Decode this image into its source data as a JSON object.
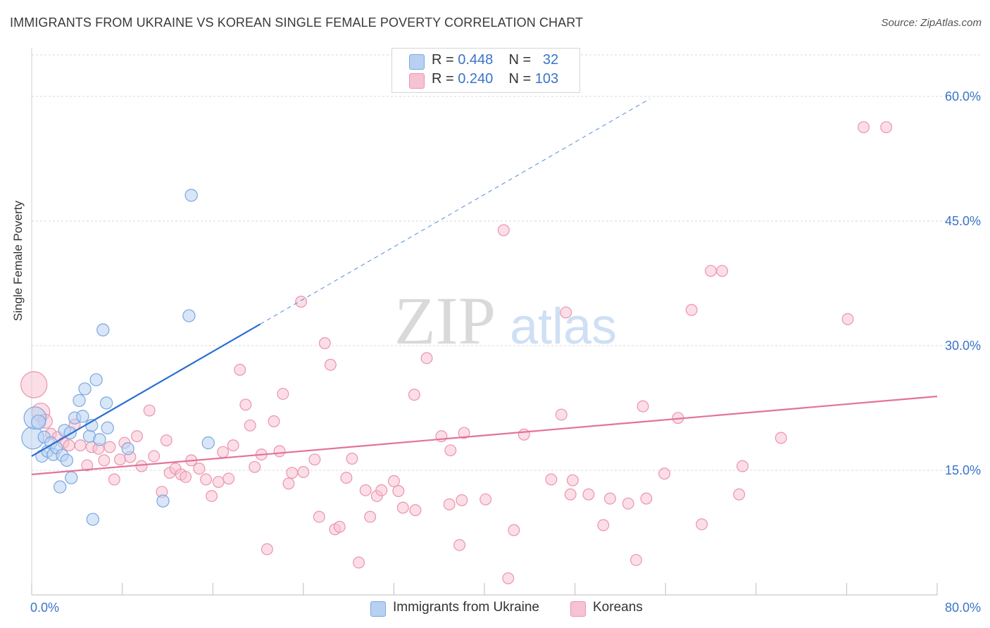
{
  "header": {
    "title": "IMMIGRANTS FROM UKRAINE VS KOREAN SINGLE FEMALE POVERTY CORRELATION CHART",
    "source": "Source: ZipAtlas.com"
  },
  "watermark": {
    "zip": "ZIP",
    "atlas": "atlas"
  },
  "legend": {
    "ukraine": {
      "r_label": "R =",
      "r_value": "0.448",
      "n_label": "N =",
      "n_value": "32"
    },
    "koreans": {
      "r_label": "R =",
      "r_value": "0.240",
      "n_label": "N =",
      "n_value": "103"
    }
  },
  "bottom_legend": {
    "ukraine": "Immigrants from Ukraine",
    "koreans": "Koreans"
  },
  "colors": {
    "ukraine_fill": "#b8d1f3",
    "ukraine_stroke": "#7ba7e0",
    "ukraine_line": "#2a6fd0",
    "koreans_fill": "#f7c3d2",
    "koreans_stroke": "#eb94b0",
    "koreans_line": "#e3729a",
    "tick_text": "#3a74c8",
    "grid": "#d8d8d8"
  },
  "chart_data": {
    "type": "scatter",
    "xlabel": "",
    "ylabel": "Single Female Poverty",
    "xlim": [
      0,
      80
    ],
    "ylim": [
      0,
      65
    ],
    "x_tick_labels": [
      "0.0%",
      "80.0%"
    ],
    "y_ticks": [
      15,
      30,
      45,
      60
    ],
    "y_tick_labels": [
      "15.0%",
      "30.0%",
      "45.0%",
      "60.0%"
    ],
    "grid": true,
    "series": [
      {
        "name": "Immigrants from Ukraine",
        "r": 0.448,
        "n": 32,
        "trend": {
          "x_start": 0,
          "y_start": 16.7,
          "x_solid_end": 20.2,
          "y_solid_end": 32.6,
          "x_dash_end": 54.6,
          "y_dash_end": 59.7
        },
        "points": [
          {
            "x": 0.1,
            "y": 18.9,
            "s": 22
          },
          {
            "x": 0.3,
            "y": 21.3,
            "s": 22
          },
          {
            "x": 0.6,
            "y": 20.8,
            "s": 14
          },
          {
            "x": 0.9,
            "y": 16.7,
            "s": 12
          },
          {
            "x": 1.1,
            "y": 19.0,
            "s": 12
          },
          {
            "x": 1.4,
            "y": 17.3,
            "s": 12
          },
          {
            "x": 1.7,
            "y": 18.3,
            "s": 12
          },
          {
            "x": 1.9,
            "y": 16.9,
            "s": 12
          },
          {
            "x": 2.2,
            "y": 17.7,
            "s": 12
          },
          {
            "x": 2.5,
            "y": 13.0,
            "s": 12
          },
          {
            "x": 2.7,
            "y": 16.8,
            "s": 12
          },
          {
            "x": 2.9,
            "y": 19.8,
            "s": 12
          },
          {
            "x": 3.1,
            "y": 16.2,
            "s": 12
          },
          {
            "x": 3.5,
            "y": 14.1,
            "s": 12
          },
          {
            "x": 3.4,
            "y": 19.5,
            "s": 12
          },
          {
            "x": 3.8,
            "y": 21.3,
            "s": 12
          },
          {
            "x": 4.2,
            "y": 23.4,
            "s": 12
          },
          {
            "x": 4.5,
            "y": 21.5,
            "s": 12
          },
          {
            "x": 4.7,
            "y": 24.8,
            "s": 12
          },
          {
            "x": 5.1,
            "y": 19.1,
            "s": 12
          },
          {
            "x": 5.3,
            "y": 20.4,
            "s": 12
          },
          {
            "x": 5.7,
            "y": 25.9,
            "s": 12
          },
          {
            "x": 6.0,
            "y": 18.7,
            "s": 12
          },
          {
            "x": 6.3,
            "y": 31.9,
            "s": 12
          },
          {
            "x": 6.6,
            "y": 23.1,
            "s": 12
          },
          {
            "x": 6.7,
            "y": 20.1,
            "s": 12
          },
          {
            "x": 5.4,
            "y": 9.1,
            "s": 12
          },
          {
            "x": 8.5,
            "y": 17.6,
            "s": 12
          },
          {
            "x": 11.6,
            "y": 11.3,
            "s": 12
          },
          {
            "x": 14.1,
            "y": 48.1,
            "s": 12
          },
          {
            "x": 13.9,
            "y": 33.6,
            "s": 12
          },
          {
            "x": 15.6,
            "y": 18.3,
            "s": 12
          }
        ]
      },
      {
        "name": "Koreans",
        "r": 0.24,
        "n": 103,
        "trend": {
          "x_start": 0,
          "y_start": 14.5,
          "x_end": 80,
          "y_end": 23.9
        },
        "points": [
          {
            "x": 0.2,
            "y": 25.3,
            "s": 26
          },
          {
            "x": 0.8,
            "y": 22.0,
            "s": 18
          },
          {
            "x": 1.2,
            "y": 20.9,
            "s": 14
          },
          {
            "x": 1.7,
            "y": 19.4,
            "s": 11
          },
          {
            "x": 2.3,
            "y": 19.0,
            "s": 11
          },
          {
            "x": 2.8,
            "y": 18.3,
            "s": 11
          },
          {
            "x": 3.3,
            "y": 18.0,
            "s": 11
          },
          {
            "x": 3.8,
            "y": 20.5,
            "s": 11
          },
          {
            "x": 4.3,
            "y": 18.0,
            "s": 11
          },
          {
            "x": 4.9,
            "y": 15.6,
            "s": 11
          },
          {
            "x": 5.3,
            "y": 17.8,
            "s": 11
          },
          {
            "x": 5.9,
            "y": 17.6,
            "s": 11
          },
          {
            "x": 6.4,
            "y": 16.2,
            "s": 11
          },
          {
            "x": 6.9,
            "y": 17.8,
            "s": 11
          },
          {
            "x": 7.3,
            "y": 13.9,
            "s": 11
          },
          {
            "x": 7.8,
            "y": 16.3,
            "s": 11
          },
          {
            "x": 8.2,
            "y": 18.3,
            "s": 11
          },
          {
            "x": 8.7,
            "y": 16.6,
            "s": 11
          },
          {
            "x": 9.3,
            "y": 19.1,
            "s": 11
          },
          {
            "x": 9.7,
            "y": 15.5,
            "s": 11
          },
          {
            "x": 10.4,
            "y": 22.2,
            "s": 11
          },
          {
            "x": 10.8,
            "y": 16.7,
            "s": 11
          },
          {
            "x": 11.5,
            "y": 12.4,
            "s": 11
          },
          {
            "x": 11.9,
            "y": 18.6,
            "s": 11
          },
          {
            "x": 12.2,
            "y": 14.7,
            "s": 11
          },
          {
            "x": 12.7,
            "y": 15.2,
            "s": 11
          },
          {
            "x": 13.2,
            "y": 14.5,
            "s": 11
          },
          {
            "x": 13.6,
            "y": 14.2,
            "s": 11
          },
          {
            "x": 14.1,
            "y": 16.2,
            "s": 11
          },
          {
            "x": 14.8,
            "y": 15.2,
            "s": 11
          },
          {
            "x": 15.4,
            "y": 13.9,
            "s": 11
          },
          {
            "x": 15.9,
            "y": 11.9,
            "s": 11
          },
          {
            "x": 16.5,
            "y": 13.6,
            "s": 11
          },
          {
            "x": 16.9,
            "y": 17.2,
            "s": 11
          },
          {
            "x": 17.4,
            "y": 14.0,
            "s": 11
          },
          {
            "x": 17.8,
            "y": 18.0,
            "s": 11
          },
          {
            "x": 18.4,
            "y": 27.1,
            "s": 11
          },
          {
            "x": 18.9,
            "y": 22.9,
            "s": 11
          },
          {
            "x": 19.3,
            "y": 20.4,
            "s": 11
          },
          {
            "x": 19.7,
            "y": 15.4,
            "s": 11
          },
          {
            "x": 20.3,
            "y": 16.9,
            "s": 11
          },
          {
            "x": 20.8,
            "y": 5.5,
            "s": 11
          },
          {
            "x": 21.4,
            "y": 20.9,
            "s": 11
          },
          {
            "x": 21.9,
            "y": 17.3,
            "s": 11
          },
          {
            "x": 22.2,
            "y": 24.2,
            "s": 11
          },
          {
            "x": 22.7,
            "y": 13.4,
            "s": 11
          },
          {
            "x": 23.0,
            "y": 14.7,
            "s": 11
          },
          {
            "x": 24.0,
            "y": 14.8,
            "s": 11
          },
          {
            "x": 23.8,
            "y": 35.3,
            "s": 11
          },
          {
            "x": 25.0,
            "y": 16.3,
            "s": 11
          },
          {
            "x": 25.4,
            "y": 9.4,
            "s": 11
          },
          {
            "x": 25.9,
            "y": 30.3,
            "s": 11
          },
          {
            "x": 26.4,
            "y": 27.7,
            "s": 11
          },
          {
            "x": 26.8,
            "y": 7.9,
            "s": 11
          },
          {
            "x": 27.2,
            "y": 8.2,
            "s": 11
          },
          {
            "x": 27.8,
            "y": 14.1,
            "s": 11
          },
          {
            "x": 28.3,
            "y": 16.4,
            "s": 11
          },
          {
            "x": 28.9,
            "y": 3.9,
            "s": 11
          },
          {
            "x": 29.5,
            "y": 12.6,
            "s": 11
          },
          {
            "x": 29.9,
            "y": 9.4,
            "s": 11
          },
          {
            "x": 30.5,
            "y": 11.9,
            "s": 11
          },
          {
            "x": 30.9,
            "y": 12.6,
            "s": 11
          },
          {
            "x": 32.0,
            "y": 13.7,
            "s": 11
          },
          {
            "x": 32.4,
            "y": 12.5,
            "s": 11
          },
          {
            "x": 32.8,
            "y": 10.5,
            "s": 11
          },
          {
            "x": 33.8,
            "y": 24.1,
            "s": 11
          },
          {
            "x": 33.9,
            "y": 10.2,
            "s": 11
          },
          {
            "x": 34.9,
            "y": 28.5,
            "s": 11
          },
          {
            "x": 36.2,
            "y": 19.1,
            "s": 11
          },
          {
            "x": 36.9,
            "y": 10.9,
            "s": 11
          },
          {
            "x": 37.0,
            "y": 17.4,
            "s": 11
          },
          {
            "x": 37.8,
            "y": 6.0,
            "s": 11
          },
          {
            "x": 38.0,
            "y": 11.4,
            "s": 11
          },
          {
            "x": 38.2,
            "y": 19.5,
            "s": 11
          },
          {
            "x": 40.1,
            "y": 11.5,
            "s": 11
          },
          {
            "x": 41.7,
            "y": 43.9,
            "s": 11
          },
          {
            "x": 42.1,
            "y": 2.0,
            "s": 11
          },
          {
            "x": 42.6,
            "y": 7.8,
            "s": 11
          },
          {
            "x": 43.5,
            "y": 19.3,
            "s": 11
          },
          {
            "x": 45.9,
            "y": 13.9,
            "s": 11
          },
          {
            "x": 46.8,
            "y": 21.7,
            "s": 11
          },
          {
            "x": 47.2,
            "y": 34.0,
            "s": 11
          },
          {
            "x": 47.6,
            "y": 12.1,
            "s": 11
          },
          {
            "x": 47.8,
            "y": 13.8,
            "s": 11
          },
          {
            "x": 49.2,
            "y": 12.1,
            "s": 11
          },
          {
            "x": 50.5,
            "y": 8.4,
            "s": 11
          },
          {
            "x": 51.1,
            "y": 11.6,
            "s": 11
          },
          {
            "x": 52.7,
            "y": 11.0,
            "s": 11
          },
          {
            "x": 53.4,
            "y": 4.2,
            "s": 11
          },
          {
            "x": 54.0,
            "y": 22.7,
            "s": 11
          },
          {
            "x": 54.3,
            "y": 11.6,
            "s": 11
          },
          {
            "x": 55.9,
            "y": 14.6,
            "s": 11
          },
          {
            "x": 57.1,
            "y": 21.3,
            "s": 11
          },
          {
            "x": 58.3,
            "y": 34.3,
            "s": 11
          },
          {
            "x": 59.2,
            "y": 8.5,
            "s": 11
          },
          {
            "x": 60.0,
            "y": 39.0,
            "s": 11
          },
          {
            "x": 61.0,
            "y": 39.0,
            "s": 11
          },
          {
            "x": 62.5,
            "y": 12.1,
            "s": 11
          },
          {
            "x": 62.8,
            "y": 15.5,
            "s": 11
          },
          {
            "x": 66.2,
            "y": 18.9,
            "s": 11
          },
          {
            "x": 72.1,
            "y": 33.2,
            "s": 11
          },
          {
            "x": 73.5,
            "y": 56.3,
            "s": 11
          },
          {
            "x": 75.5,
            "y": 56.3,
            "s": 11
          }
        ]
      }
    ]
  }
}
